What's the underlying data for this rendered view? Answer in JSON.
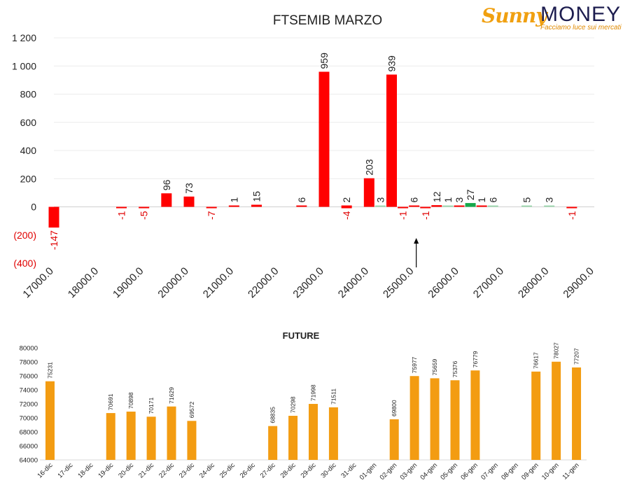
{
  "logo": {
    "brand_sunny": "Sunny",
    "brand_money": "MONEY",
    "tagline": "Facciamo luce sui mercati"
  },
  "colors": {
    "negative_text": "#e00000",
    "red_bar": "#ff0000",
    "green_bar": "#17a84b",
    "light_green_bar": "#9fd8b0",
    "orange_bar": "#f39c12"
  },
  "chart_data": [
    {
      "type": "bar",
      "title": "FTSEMIB MARZO",
      "ylim": [
        -400,
        1200
      ],
      "yticks": [
        -400,
        -200,
        0,
        200,
        400,
        600,
        800,
        1000,
        1200
      ],
      "ytick_labels": [
        "(400)",
        "(200)",
        "0",
        "200",
        "400",
        "600",
        "800",
        "1 000",
        "1 200"
      ],
      "xlim": [
        17000,
        29000
      ],
      "xticks": [
        "17000.0",
        "18000.0",
        "19000.0",
        "20000.0",
        "21000.0",
        "22000.0",
        "23000.0",
        "24000.0",
        "25000.0",
        "26000.0",
        "27000.0",
        "28000.0",
        "29000.0"
      ],
      "grid": true,
      "annotations": [
        {
          "type": "arrow",
          "x": 25000,
          "direction": "up"
        }
      ],
      "bars": [
        {
          "x": 17000,
          "value": -147,
          "label": "-147",
          "color": "red"
        },
        {
          "x": 18500,
          "value": -1,
          "label": "-1",
          "color": "red"
        },
        {
          "x": 19000,
          "value": -5,
          "label": "-5",
          "color": "red"
        },
        {
          "x": 19500,
          "value": 96,
          "label": "96",
          "color": "red"
        },
        {
          "x": 20000,
          "value": 73,
          "label": "73",
          "color": "red"
        },
        {
          "x": 20500,
          "value": -7,
          "label": "-7",
          "color": "red"
        },
        {
          "x": 21000,
          "value": 1,
          "label": "1",
          "color": "red"
        },
        {
          "x": 21500,
          "value": 15,
          "label": "15",
          "color": "red"
        },
        {
          "x": 22500,
          "value": 6,
          "label": "6",
          "color": "red"
        },
        {
          "x": 23000,
          "value": 959,
          "label": "959",
          "color": "red"
        },
        {
          "x": 23500,
          "value": -4,
          "label": "-4",
          "color": "red"
        },
        {
          "x": 23500,
          "value": 2,
          "label": "2",
          "color": "red"
        },
        {
          "x": 24000,
          "value": 203,
          "label": "203",
          "color": "red"
        },
        {
          "x": 24250,
          "value": 3,
          "label": "3",
          "color": "light_green"
        },
        {
          "x": 24500,
          "value": 939,
          "label": "939",
          "color": "red"
        },
        {
          "x": 24750,
          "value": -1,
          "label": "-1",
          "color": "red"
        },
        {
          "x": 25000,
          "value": 6,
          "label": "6",
          "color": "red"
        },
        {
          "x": 25250,
          "value": -1,
          "label": "-1",
          "color": "red"
        },
        {
          "x": 25500,
          "value": 12,
          "label": "12",
          "color": "red"
        },
        {
          "x": 25750,
          "value": 1,
          "label": "1",
          "color": "light_green"
        },
        {
          "x": 26000,
          "value": 3,
          "label": "3",
          "color": "red"
        },
        {
          "x": 26250,
          "value": 27,
          "label": "27",
          "color": "green"
        },
        {
          "x": 26500,
          "value": 1,
          "label": "1",
          "color": "red"
        },
        {
          "x": 26750,
          "value": 6,
          "label": "6",
          "color": "light_green"
        },
        {
          "x": 27500,
          "value": 5,
          "label": "5",
          "color": "light_green"
        },
        {
          "x": 28000,
          "value": 3,
          "label": "3",
          "color": "light_green"
        },
        {
          "x": 28500,
          "value": -1,
          "label": "-1",
          "color": "red"
        }
      ]
    },
    {
      "type": "bar",
      "title": "FUTURE",
      "ylim": [
        64000,
        80000
      ],
      "yticks": [
        64000,
        66000,
        68000,
        70000,
        72000,
        74000,
        76000,
        78000,
        80000
      ],
      "categories": [
        "16-dic",
        "17-dic",
        "18-dic",
        "19-dic",
        "20-dic",
        "21-dic",
        "22-dic",
        "23-dic",
        "24-dic",
        "25-dic",
        "26-dic",
        "27-dic",
        "28-dic",
        "29-dic",
        "30-dic",
        "31-dic",
        "01-gen",
        "02-gen",
        "03-gen",
        "04-gen",
        "05-gen",
        "06-gen",
        "07-gen",
        "08-gen",
        "09-gen",
        "10-gen",
        "11-gen"
      ],
      "values": [
        75231,
        null,
        null,
        70691,
        70898,
        70171,
        71629,
        69572,
        null,
        null,
        null,
        68835,
        70298,
        71998,
        71511,
        null,
        null,
        69800,
        75977,
        75659,
        75376,
        76779,
        null,
        null,
        76617,
        78027,
        77207
      ],
      "value_labels": [
        "75231",
        "",
        "",
        "70691",
        "70898",
        "70171",
        "71629",
        "69572",
        "",
        "",
        "",
        "68835",
        "70298",
        "71998",
        "71511",
        "",
        "",
        "69800",
        "75977",
        "75659",
        "75376",
        "76779",
        "",
        "",
        "76617",
        "78027",
        "77207"
      ],
      "grid": false
    }
  ]
}
